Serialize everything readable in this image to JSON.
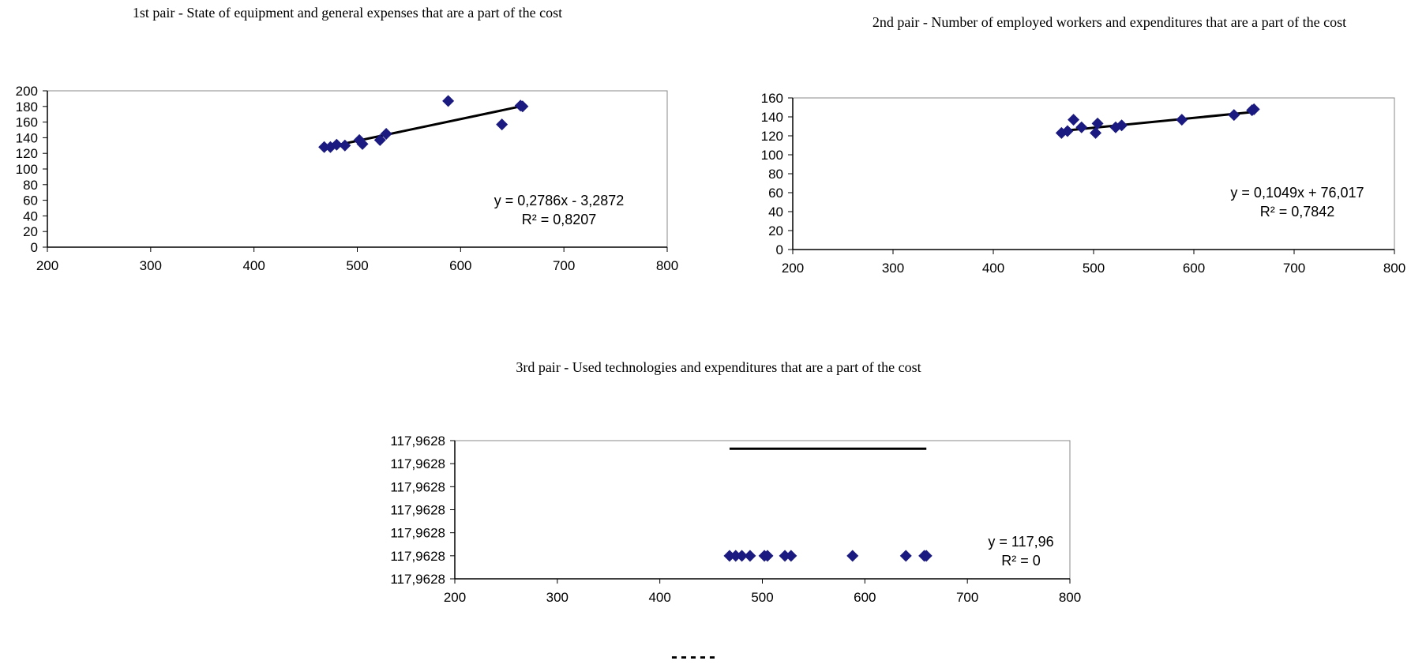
{
  "chart_data": [
    {
      "type": "scatter",
      "title": "1st pair - State of equipment and general expenses that are a part of the cost",
      "xlim": [
        200,
        800
      ],
      "xticks": [
        "200",
        "300",
        "400",
        "500",
        "600",
        "700",
        "800"
      ],
      "ylim": [
        0,
        200
      ],
      "yticks": [
        "0",
        "20",
        "40",
        "60",
        "80",
        "100",
        "120",
        "140",
        "160",
        "180",
        "200"
      ],
      "series": [
        {
          "marker": "diamond",
          "color": "#1a1a80",
          "points": [
            [
              468,
              128
            ],
            [
              474,
              128
            ],
            [
              480,
              131
            ],
            [
              488,
              130
            ],
            [
              502,
              137
            ],
            [
              505,
              132
            ],
            [
              522,
              137
            ],
            [
              528,
              145
            ],
            [
              588,
              187
            ],
            [
              640,
              157
            ],
            [
              658,
              181
            ],
            [
              660,
              180
            ]
          ]
        }
      ],
      "trendline": {
        "equation": "y = 0,2786x - 3,2872",
        "r2": "R² = 0,8207",
        "slope": 0.2786,
        "intercept": -3.2872,
        "x_range": [
          468,
          660
        ]
      },
      "grid": false
    },
    {
      "type": "scatter",
      "title": "2nd pair - Number of employed workers and expenditures that are a part of the cost",
      "xlim": [
        200,
        800
      ],
      "xticks": [
        "200",
        "300",
        "400",
        "500",
        "600",
        "700",
        "800"
      ],
      "ylim": [
        0,
        160
      ],
      "yticks": [
        "0",
        "20",
        "40",
        "60",
        "80",
        "100",
        "120",
        "140",
        "160"
      ],
      "series": [
        {
          "marker": "diamond",
          "color": "#1a1a80",
          "points": [
            [
              468,
              123
            ],
            [
              474,
              125
            ],
            [
              480,
              137
            ],
            [
              488,
              129
            ],
            [
              502,
              123
            ],
            [
              504,
              133
            ],
            [
              522,
              129
            ],
            [
              528,
              131
            ],
            [
              588,
              137
            ],
            [
              640,
              142
            ],
            [
              658,
              147
            ],
            [
              660,
              148
            ]
          ]
        }
      ],
      "trendline": {
        "equation": "y = 0,1049x + 76,017",
        "r2": "R² = 0,7842",
        "slope": 0.1049,
        "intercept": 76.017,
        "x_range": [
          468,
          660
        ]
      },
      "grid": false
    },
    {
      "type": "scatter",
      "title": "3rd pair - Used technologies  and expenditures that are a part of the cost",
      "xlim": [
        200,
        800
      ],
      "xticks": [
        "200",
        "300",
        "400",
        "500",
        "600",
        "700",
        "800"
      ],
      "ylim": [
        0,
        6
      ],
      "yticks": [
        "117,9628",
        "117,9628",
        "117,9628",
        "117,9628",
        "117,9628",
        "117,9628",
        "117,9628"
      ],
      "series": [
        {
          "marker": "diamond",
          "color": "#1a1a80",
          "points": [
            [
              468,
              1
            ],
            [
              474,
              1
            ],
            [
              480,
              1
            ],
            [
              488,
              1
            ],
            [
              502,
              1
            ],
            [
              505,
              1
            ],
            [
              522,
              1
            ],
            [
              528,
              1
            ],
            [
              588,
              1
            ],
            [
              640,
              1
            ],
            [
              658,
              1
            ],
            [
              660,
              1
            ]
          ]
        }
      ],
      "trendline": {
        "equation": "y = 117,96",
        "r2": "R² = 0",
        "x_range": [
          468,
          660
        ],
        "y_level": 5.65
      },
      "grid": false
    }
  ],
  "footer": {
    "separator": "-----"
  },
  "colors": {
    "marker": "#1a1a80",
    "trendline": "#000000",
    "plot_border": "#888888"
  }
}
